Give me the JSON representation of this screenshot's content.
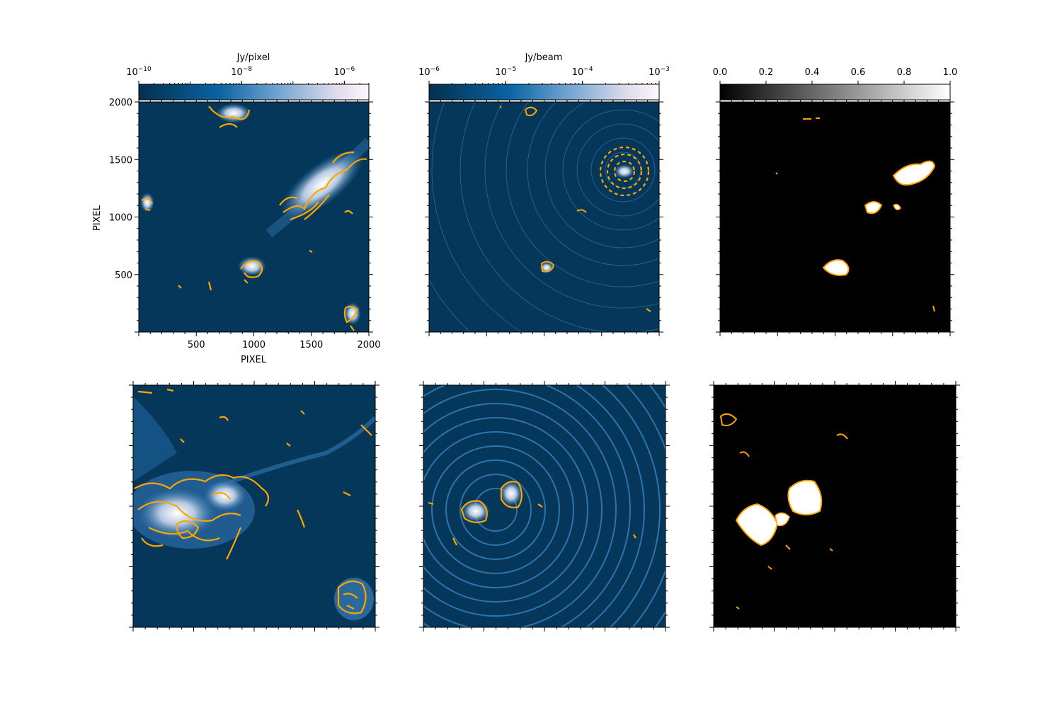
{
  "chart_data": [
    {
      "type": "heatmap",
      "panel": "top-left",
      "colormap": "blue-to-white",
      "colorbar": {
        "label": "Jy/pixel",
        "scale": "log",
        "range": [
          1e-10,
          3e-06
        ],
        "ticks": [
          {
            "value": 1e-10,
            "base": "10",
            "exp": "−10"
          },
          {
            "value": 1e-08,
            "base": "10",
            "exp": "−8"
          },
          {
            "value": 1e-06,
            "base": "10",
            "exp": "−6"
          }
        ]
      },
      "xlabel": "PIXEL",
      "ylabel": "PIXEL",
      "xlim": [
        0,
        2000
      ],
      "ylim": [
        0,
        2000
      ],
      "xticks": [
        "500",
        "1000",
        "1500",
        "2000"
      ],
      "yticks": [
        "500",
        "1000",
        "1500",
        "2000"
      ],
      "contour_color": "#ffa500"
    },
    {
      "type": "heatmap",
      "panel": "top-middle",
      "colormap": "blue-to-white",
      "colorbar": {
        "label": "Jy/beam",
        "scale": "log",
        "range": [
          1e-06,
          0.001
        ],
        "ticks": [
          {
            "value": 1e-06,
            "base": "10",
            "exp": "−6"
          },
          {
            "value": 1e-05,
            "base": "10",
            "exp": "−5"
          },
          {
            "value": 0.0001,
            "base": "10",
            "exp": "−4"
          },
          {
            "value": 0.001,
            "base": "10",
            "exp": "−3"
          }
        ]
      },
      "contour_color": "#ffa500"
    },
    {
      "type": "heatmap",
      "panel": "top-right",
      "colormap": "gray",
      "colorbar": {
        "label": "",
        "scale": "linear",
        "range": [
          0,
          1
        ],
        "ticks": [
          {
            "value": 0,
            "text": "0.0"
          },
          {
            "value": 0.2,
            "text": "0.2"
          },
          {
            "value": 0.4,
            "text": "0.4"
          },
          {
            "value": 0.6,
            "text": "0.6"
          },
          {
            "value": 0.8,
            "text": "0.8"
          },
          {
            "value": 1.0,
            "text": "1.0"
          }
        ]
      },
      "contour_color": "#ffa500"
    },
    {
      "type": "heatmap",
      "panel": "bottom-left",
      "colormap": "blue-to-white",
      "contour_color": "#ffa500"
    },
    {
      "type": "heatmap",
      "panel": "bottom-middle",
      "colormap": "blue-to-white",
      "contour_color": "#ffa500"
    },
    {
      "type": "heatmap",
      "panel": "bottom-right",
      "colormap": "gray",
      "contour_color": "#ffa500"
    }
  ],
  "colors": {
    "background_blue": "#04375a",
    "contour": "#ffa500",
    "mask_white": "#ffffff",
    "mask_black": "#000000"
  }
}
